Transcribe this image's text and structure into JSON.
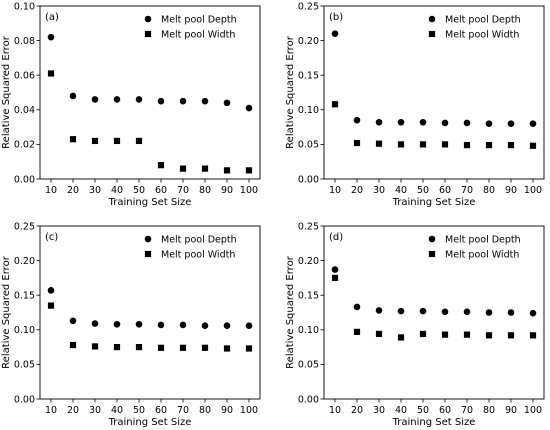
{
  "chart_data": [
    {
      "type": "scatter",
      "panel_label": "(a)",
      "xlabel": "Training Set Size",
      "ylabel": "Relative Squared Error",
      "x": [
        10,
        20,
        30,
        40,
        50,
        60,
        70,
        80,
        90,
        100
      ],
      "xticks": [
        "10",
        "20",
        "30",
        "40",
        "50",
        "60",
        "70",
        "80",
        "90",
        "100"
      ],
      "ylim": [
        0,
        0.1
      ],
      "yticks": [
        "0.00",
        "0.02",
        "0.04",
        "0.06",
        "0.08",
        "0.10"
      ],
      "ytick_values": [
        0,
        0.02,
        0.04,
        0.06,
        0.08,
        0.1
      ],
      "legend_position": "top-right",
      "series": [
        {
          "name": "Melt pool Depth",
          "marker": "circle",
          "values": [
            0.082,
            0.048,
            0.046,
            0.046,
            0.046,
            0.045,
            0.045,
            0.045,
            0.044,
            0.041
          ]
        },
        {
          "name": "Melt pool Width",
          "marker": "square",
          "values": [
            0.061,
            0.023,
            0.022,
            0.022,
            0.022,
            0.008,
            0.006,
            0.006,
            0.005,
            0.005
          ]
        }
      ]
    },
    {
      "type": "scatter",
      "panel_label": "(b)",
      "xlabel": "Training Set Size",
      "ylabel": "Relative Squared Error",
      "x": [
        10,
        20,
        30,
        40,
        50,
        60,
        70,
        80,
        90,
        100
      ],
      "xticks": [
        "10",
        "20",
        "30",
        "40",
        "50",
        "60",
        "70",
        "80",
        "90",
        "100"
      ],
      "ylim": [
        0,
        0.25
      ],
      "yticks": [
        "0.00",
        "0.05",
        "0.10",
        "0.15",
        "0.20",
        "0.25"
      ],
      "ytick_values": [
        0,
        0.05,
        0.1,
        0.15,
        0.2,
        0.25
      ],
      "legend_position": "top-right",
      "series": [
        {
          "name": "Melt pool Depth",
          "marker": "circle",
          "values": [
            0.21,
            0.085,
            0.082,
            0.082,
            0.082,
            0.081,
            0.081,
            0.08,
            0.08,
            0.08
          ]
        },
        {
          "name": "Melt pool Width",
          "marker": "square",
          "values": [
            0.108,
            0.052,
            0.051,
            0.05,
            0.05,
            0.05,
            0.049,
            0.049,
            0.049,
            0.048
          ]
        }
      ]
    },
    {
      "type": "scatter",
      "panel_label": "(c)",
      "xlabel": "Training Set Size",
      "ylabel": "Relative Squared Error",
      "x": [
        10,
        20,
        30,
        40,
        50,
        60,
        70,
        80,
        90,
        100
      ],
      "xticks": [
        "10",
        "20",
        "30",
        "40",
        "50",
        "60",
        "70",
        "80",
        "90",
        "100"
      ],
      "ylim": [
        0,
        0.25
      ],
      "yticks": [
        "0.00",
        "0.05",
        "0.10",
        "0.15",
        "0.20",
        "0.25"
      ],
      "ytick_values": [
        0,
        0.05,
        0.1,
        0.15,
        0.2,
        0.25
      ],
      "legend_position": "top-right",
      "series": [
        {
          "name": "Melt pool Depth",
          "marker": "circle",
          "values": [
            0.157,
            0.113,
            0.109,
            0.108,
            0.108,
            0.107,
            0.107,
            0.106,
            0.106,
            0.106
          ]
        },
        {
          "name": "Melt pool Width",
          "marker": "square",
          "values": [
            0.135,
            0.078,
            0.076,
            0.075,
            0.075,
            0.074,
            0.074,
            0.074,
            0.073,
            0.073
          ]
        }
      ]
    },
    {
      "type": "scatter",
      "panel_label": "(d)",
      "xlabel": "Training Set Size",
      "ylabel": "Relative Squared Error",
      "x": [
        10,
        20,
        30,
        40,
        50,
        60,
        70,
        80,
        90,
        100
      ],
      "xticks": [
        "10",
        "20",
        "30",
        "40",
        "50",
        "60",
        "70",
        "80",
        "90",
        "100"
      ],
      "ylim": [
        0,
        0.25
      ],
      "yticks": [
        "0.00",
        "0.05",
        "0.10",
        "0.15",
        "0.20",
        "0.25"
      ],
      "ytick_values": [
        0,
        0.05,
        0.1,
        0.15,
        0.2,
        0.25
      ],
      "legend_position": "top-right",
      "series": [
        {
          "name": "Melt pool Depth",
          "marker": "circle",
          "values": [
            0.187,
            0.133,
            0.128,
            0.127,
            0.127,
            0.126,
            0.126,
            0.125,
            0.125,
            0.124
          ]
        },
        {
          "name": "Melt pool Width",
          "marker": "square",
          "values": [
            0.175,
            0.097,
            0.094,
            0.089,
            0.094,
            0.093,
            0.093,
            0.092,
            0.092,
            0.092
          ]
        }
      ]
    }
  ]
}
